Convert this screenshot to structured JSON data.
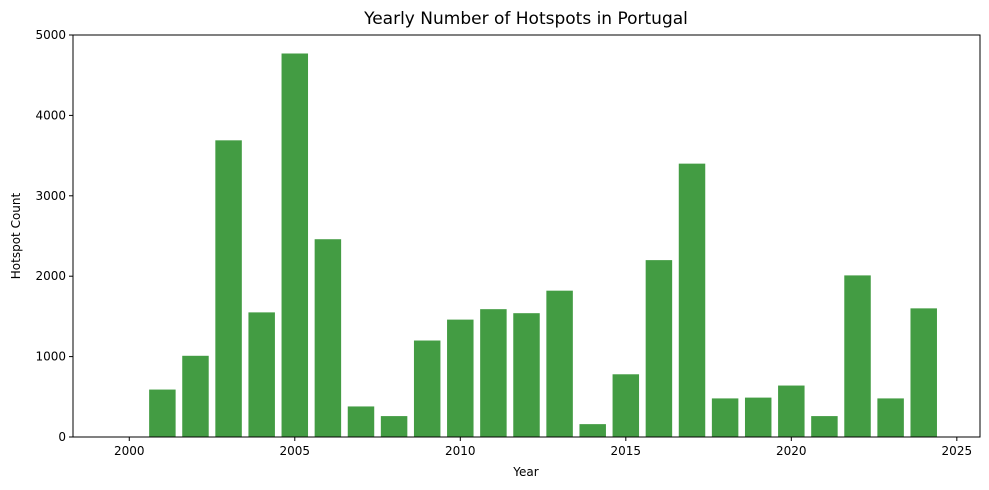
{
  "chart_data": {
    "type": "bar",
    "title": "Yearly Number of Hotspots in Portugal",
    "xlabel": "Year",
    "ylabel": "Hotspot Count",
    "x": [
      2001,
      2002,
      2003,
      2004,
      2005,
      2006,
      2007,
      2008,
      2009,
      2010,
      2011,
      2012,
      2013,
      2014,
      2015,
      2016,
      2017,
      2018,
      2019,
      2020,
      2021,
      2022,
      2023,
      2024
    ],
    "values": [
      590,
      1010,
      3690,
      1550,
      4770,
      2460,
      380,
      260,
      1200,
      1460,
      1590,
      1540,
      1820,
      160,
      780,
      2200,
      3400,
      480,
      490,
      640,
      260,
      2010,
      480,
      1600
    ],
    "xlim": [
      1998.3,
      2025.7
    ],
    "ylim": [
      0,
      5000
    ],
    "xticks": [
      2000,
      2005,
      2010,
      2015,
      2020,
      2025
    ],
    "yticks": [
      0,
      1000,
      2000,
      3000,
      4000,
      5000
    ],
    "bar_color": "#439c43",
    "grid": false,
    "legend": false
  }
}
